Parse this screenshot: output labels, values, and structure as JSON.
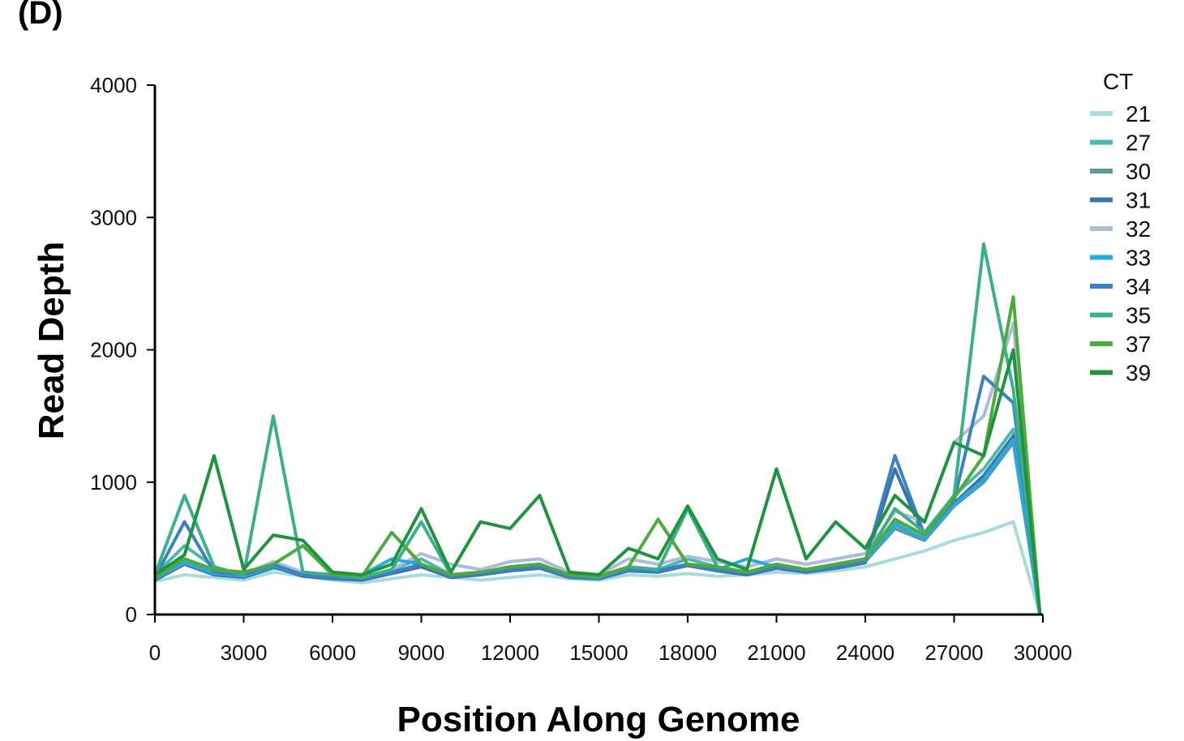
{
  "panel_label": "(D)",
  "chart_data": {
    "type": "line",
    "title": "",
    "xlabel": "Position Along Genome",
    "ylabel": "Read Depth",
    "xlim": [
      0,
      30000
    ],
    "ylim": [
      0,
      4000
    ],
    "xticks": [
      0,
      3000,
      6000,
      9000,
      12000,
      15000,
      18000,
      21000,
      24000,
      27000,
      30000
    ],
    "yticks": [
      0,
      1000,
      2000,
      3000,
      4000
    ],
    "legend_title": "CT",
    "legend_position": "top-right",
    "grid": false,
    "series": [
      {
        "name": "21",
        "color": "#a8dcdc",
        "x": [
          0,
          1000,
          2000,
          3000,
          4000,
          5000,
          6000,
          7000,
          8000,
          9000,
          10000,
          11000,
          12000,
          13000,
          14000,
          15000,
          16000,
          17000,
          18000,
          19000,
          20000,
          21000,
          22000,
          23000,
          24000,
          25000,
          26000,
          27000,
          28000,
          29000,
          29900
        ],
        "y": [
          250,
          300,
          280,
          260,
          320,
          290,
          260,
          240,
          270,
          300,
          280,
          260,
          280,
          300,
          270,
          260,
          300,
          290,
          310,
          290,
          300,
          320,
          310,
          330,
          360,
          420,
          480,
          560,
          620,
          700,
          0
        ]
      },
      {
        "name": "27",
        "color": "#4bb8b4",
        "x": [
          0,
          1000,
          2000,
          3000,
          4000,
          5000,
          6000,
          7000,
          8000,
          9000,
          10000,
          11000,
          12000,
          13000,
          14000,
          15000,
          16000,
          17000,
          18000,
          19000,
          20000,
          21000,
          22000,
          23000,
          24000,
          25000,
          26000,
          27000,
          28000,
          29000,
          29900
        ],
        "y": [
          300,
          520,
          360,
          280,
          350,
          320,
          300,
          260,
          340,
          420,
          300,
          320,
          360,
          380,
          300,
          280,
          360,
          340,
          420,
          360,
          320,
          380,
          340,
          380,
          420,
          700,
          600,
          900,
          1100,
          1400,
          0
        ]
      },
      {
        "name": "30",
        "color": "#5a9a96",
        "x": [
          0,
          1000,
          2000,
          3000,
          4000,
          5000,
          6000,
          7000,
          8000,
          9000,
          10000,
          11000,
          12000,
          13000,
          14000,
          15000,
          16000,
          17000,
          18000,
          19000,
          20000,
          21000,
          22000,
          23000,
          24000,
          25000,
          26000,
          27000,
          28000,
          29000,
          29900
        ],
        "y": [
          280,
          400,
          320,
          300,
          380,
          300,
          280,
          270,
          320,
          380,
          290,
          310,
          340,
          360,
          290,
          280,
          340,
          330,
          380,
          340,
          310,
          360,
          330,
          360,
          400,
          650,
          560,
          820,
          1000,
          1300,
          0
        ]
      },
      {
        "name": "31",
        "color": "#3d74a8",
        "x": [
          0,
          1000,
          2000,
          3000,
          4000,
          5000,
          6000,
          7000,
          8000,
          9000,
          10000,
          11000,
          12000,
          13000,
          14000,
          15000,
          16000,
          17000,
          18000,
          19000,
          20000,
          21000,
          22000,
          23000,
          24000,
          25000,
          26000,
          27000,
          28000,
          29000,
          29900
        ],
        "y": [
          260,
          380,
          300,
          280,
          360,
          290,
          270,
          260,
          310,
          360,
          280,
          300,
          330,
          350,
          280,
          270,
          330,
          320,
          370,
          330,
          300,
          350,
          320,
          350,
          390,
          1100,
          580,
          840,
          1050,
          1350,
          0
        ]
      },
      {
        "name": "32",
        "color": "#aebcd8",
        "x": [
          0,
          1000,
          2000,
          3000,
          4000,
          5000,
          6000,
          7000,
          8000,
          9000,
          10000,
          11000,
          12000,
          13000,
          14000,
          15000,
          16000,
          17000,
          18000,
          19000,
          20000,
          21000,
          22000,
          23000,
          24000,
          25000,
          26000,
          27000,
          28000,
          29000,
          29900
        ],
        "y": [
          300,
          420,
          340,
          300,
          400,
          320,
          300,
          280,
          340,
          460,
          380,
          340,
          400,
          420,
          320,
          300,
          420,
          380,
          440,
          400,
          360,
          420,
          380,
          420,
          460,
          780,
          700,
          1300,
          1500,
          2200,
          0
        ]
      },
      {
        "name": "33",
        "color": "#2aa8e0",
        "x": [
          0,
          1000,
          2000,
          3000,
          4000,
          5000,
          6000,
          7000,
          8000,
          9000,
          10000,
          11000,
          12000,
          13000,
          14000,
          15000,
          16000,
          17000,
          18000,
          19000,
          20000,
          21000,
          22000,
          23000,
          24000,
          25000,
          26000,
          27000,
          28000,
          29000,
          29900
        ],
        "y": [
          270,
          390,
          310,
          290,
          370,
          300,
          280,
          300,
          420,
          380,
          290,
          310,
          340,
          360,
          290,
          280,
          340,
          330,
          380,
          340,
          420,
          360,
          330,
          360,
          400,
          680,
          570,
          830,
          1020,
          1320,
          0
        ]
      },
      {
        "name": "34",
        "color": "#3b82c4",
        "x": [
          0,
          1000,
          2000,
          3000,
          4000,
          5000,
          6000,
          7000,
          8000,
          9000,
          10000,
          11000,
          12000,
          13000,
          14000,
          15000,
          16000,
          17000,
          18000,
          19000,
          20000,
          21000,
          22000,
          23000,
          24000,
          25000,
          26000,
          27000,
          28000,
          29000,
          29900
        ],
        "y": [
          280,
          700,
          320,
          300,
          380,
          300,
          280,
          270,
          320,
          380,
          290,
          310,
          340,
          360,
          290,
          280,
          340,
          330,
          380,
          340,
          310,
          360,
          330,
          360,
          400,
          1200,
          600,
          860,
          1800,
          1600,
          0
        ]
      },
      {
        "name": "35",
        "color": "#3cb08a",
        "x": [
          0,
          1000,
          2000,
          3000,
          4000,
          5000,
          6000,
          7000,
          8000,
          9000,
          10000,
          11000,
          12000,
          13000,
          14000,
          15000,
          16000,
          17000,
          18000,
          19000,
          20000,
          21000,
          22000,
          23000,
          24000,
          25000,
          26000,
          27000,
          28000,
          29000,
          29900
        ],
        "y": [
          300,
          900,
          360,
          300,
          1500,
          320,
          300,
          280,
          340,
          700,
          300,
          320,
          360,
          380,
          300,
          280,
          360,
          340,
          800,
          360,
          320,
          380,
          340,
          380,
          420,
          800,
          620,
          900,
          2800,
          1700,
          0
        ]
      },
      {
        "name": "37",
        "color": "#4daa3c",
        "x": [
          0,
          1000,
          2000,
          3000,
          4000,
          5000,
          6000,
          7000,
          8000,
          9000,
          10000,
          11000,
          12000,
          13000,
          14000,
          15000,
          16000,
          17000,
          18000,
          19000,
          20000,
          21000,
          22000,
          23000,
          24000,
          25000,
          26000,
          27000,
          28000,
          29000,
          29900
        ],
        "y": [
          280,
          420,
          340,
          320,
          380,
          520,
          300,
          290,
          620,
          380,
          300,
          320,
          360,
          380,
          300,
          290,
          360,
          720,
          380,
          360,
          320,
          380,
          340,
          380,
          420,
          720,
          600,
          880,
          1200,
          2400,
          0
        ]
      },
      {
        "name": "39",
        "color": "#1f9440",
        "x": [
          0,
          1000,
          2000,
          3000,
          4000,
          5000,
          6000,
          7000,
          8000,
          9000,
          10000,
          11000,
          12000,
          13000,
          14000,
          15000,
          16000,
          17000,
          18000,
          19000,
          20000,
          21000,
          22000,
          23000,
          24000,
          25000,
          26000,
          27000,
          28000,
          29000,
          29900
        ],
        "y": [
          300,
          450,
          1200,
          340,
          600,
          560,
          320,
          300,
          380,
          800,
          320,
          700,
          650,
          900,
          320,
          300,
          500,
          420,
          820,
          420,
          340,
          1100,
          420,
          700,
          500,
          900,
          700,
          1300,
          1200,
          2000,
          0
        ]
      }
    ]
  }
}
